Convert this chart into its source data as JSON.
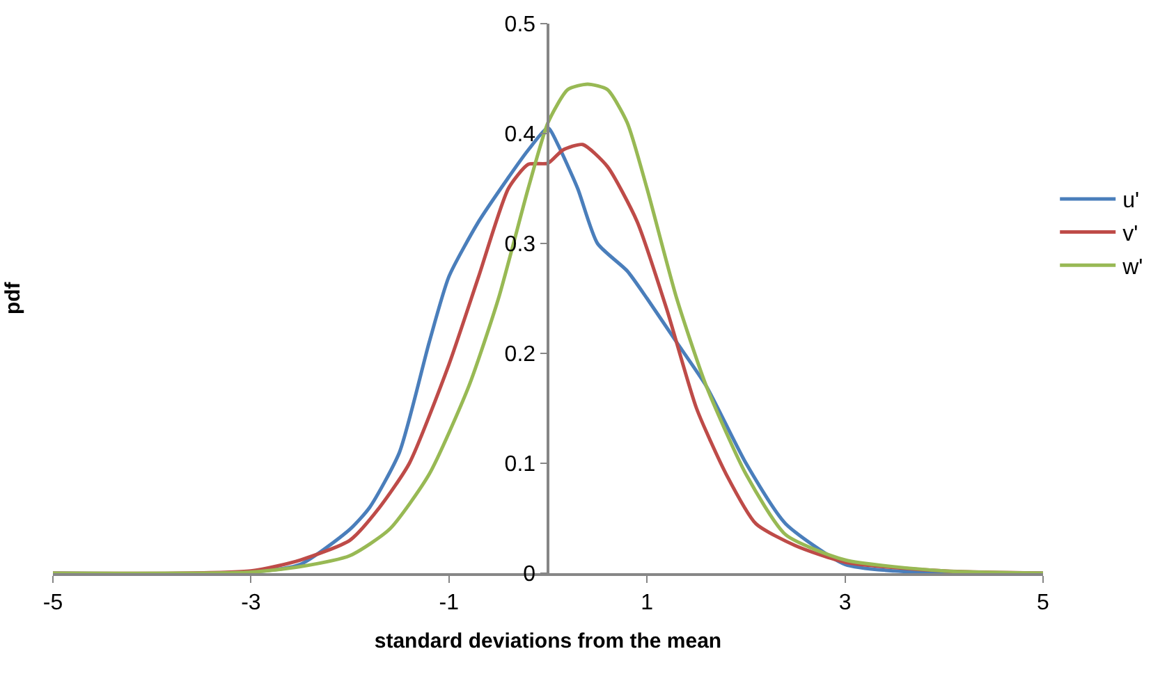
{
  "chart_data": {
    "type": "line",
    "xlabel": "standard deviations from the mean",
    "ylabel": "pdf",
    "xlim": [
      -5,
      5
    ],
    "xticks": [
      -5,
      -3,
      -1,
      1,
      3,
      5
    ],
    "ylim": [
      0,
      0.5
    ],
    "yticks": [
      0,
      0.1,
      0.2,
      0.3,
      0.4,
      0.5
    ],
    "legend": "right",
    "marker": "none",
    "line_style": "solid",
    "series": [
      {
        "name": "u'",
        "color": "#4a7ebb",
        "x": [
          -5,
          -3,
          -2.5,
          -2,
          -1.8,
          -1.5,
          -1.2,
          -1,
          -0.7,
          -0.4,
          -0.2,
          0,
          0.1,
          0.3,
          0.5,
          0.8,
          1,
          1.3,
          1.6,
          2,
          2.4,
          3,
          3.5,
          5
        ],
        "values": [
          0,
          0.001,
          0.008,
          0.04,
          0.06,
          0.11,
          0.21,
          0.27,
          0.32,
          0.36,
          0.385,
          0.405,
          0.39,
          0.35,
          0.3,
          0.275,
          0.25,
          0.21,
          0.17,
          0.1,
          0.045,
          0.008,
          0.002,
          0
        ]
      },
      {
        "name": "v'",
        "color": "#be4b48",
        "x": [
          -5,
          -3,
          -2.5,
          -2,
          -1.7,
          -1.4,
          -1,
          -0.7,
          -0.4,
          -0.2,
          0,
          0.15,
          0.35,
          0.6,
          0.9,
          1.2,
          1.5,
          1.8,
          2.1,
          2.5,
          3,
          4,
          5
        ],
        "values": [
          0,
          0.002,
          0.012,
          0.03,
          0.06,
          0.1,
          0.19,
          0.27,
          0.35,
          0.372,
          0.373,
          0.385,
          0.39,
          0.37,
          0.32,
          0.24,
          0.15,
          0.09,
          0.045,
          0.025,
          0.01,
          0.002,
          0
        ]
      },
      {
        "name": "w'",
        "color": "#98b954",
        "x": [
          -5,
          -3,
          -2.5,
          -2,
          -1.6,
          -1.2,
          -0.8,
          -0.5,
          -0.2,
          0,
          0.2,
          0.4,
          0.6,
          0.8,
          1,
          1.3,
          1.6,
          2,
          2.4,
          3,
          4,
          5
        ],
        "values": [
          0,
          0.001,
          0.006,
          0.016,
          0.04,
          0.09,
          0.17,
          0.25,
          0.35,
          0.41,
          0.44,
          0.445,
          0.44,
          0.41,
          0.35,
          0.25,
          0.17,
          0.09,
          0.035,
          0.012,
          0.002,
          0
        ]
      }
    ]
  }
}
